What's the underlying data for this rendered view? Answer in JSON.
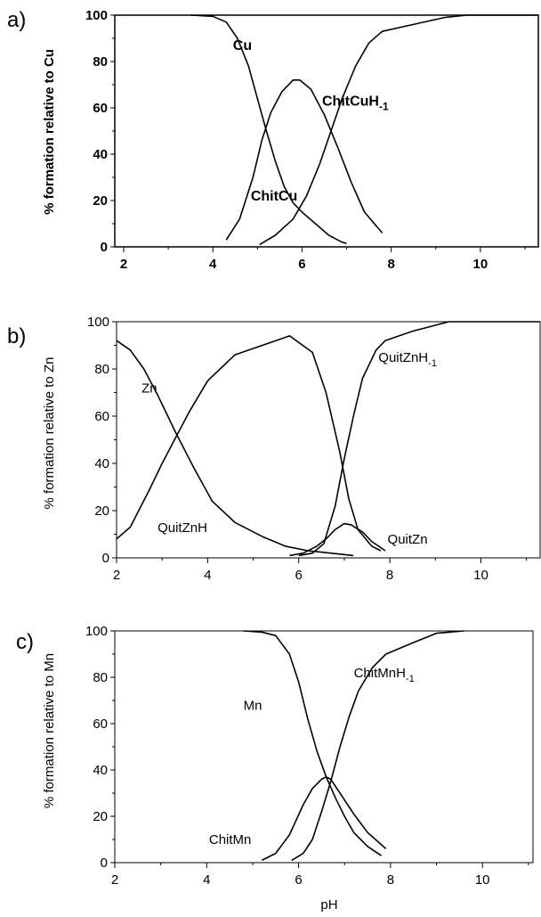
{
  "chart_data": [
    {
      "type": "line",
      "panel_label": "a)",
      "ylabel": "% formation relative to Cu",
      "xlabel": "",
      "xlim": [
        1.8,
        11.3
      ],
      "ylim": [
        0,
        100
      ],
      "xticks": [
        "2",
        "4",
        "6",
        "8",
        "10"
      ],
      "yticks": [
        "0",
        "20",
        "40",
        "60",
        "80",
        "100"
      ],
      "series": [
        {
          "name": "Cu",
          "label_at": [
            4.45,
            85
          ],
          "points": [
            [
              3.5,
              100
            ],
            [
              4.0,
              99.5
            ],
            [
              4.3,
              97
            ],
            [
              4.55,
              90
            ],
            [
              4.8,
              78
            ],
            [
              5.0,
              64
            ],
            [
              5.2,
              50
            ],
            [
              5.4,
              37
            ],
            [
              5.6,
              26
            ],
            [
              5.8,
              19
            ],
            [
              6.0,
              15
            ],
            [
              6.3,
              10
            ],
            [
              6.6,
              5
            ],
            [
              6.9,
              2
            ],
            [
              7.0,
              1.5
            ]
          ]
        },
        {
          "name": "ChitCu",
          "label_at": [
            4.85,
            20
          ],
          "points": [
            [
              4.3,
              3
            ],
            [
              4.6,
              12
            ],
            [
              4.9,
              30
            ],
            [
              5.1,
              46
            ],
            [
              5.3,
              58
            ],
            [
              5.55,
              67
            ],
            [
              5.8,
              72
            ],
            [
              5.95,
              72
            ],
            [
              6.2,
              68
            ],
            [
              6.5,
              57
            ],
            [
              6.8,
              43
            ],
            [
              7.1,
              28
            ],
            [
              7.4,
              15
            ],
            [
              7.8,
              6
            ]
          ]
        },
        {
          "name": "ChitCuH-1",
          "label_at": [
            6.45,
            61
          ],
          "points": [
            [
              5.05,
              1
            ],
            [
              5.4,
              5
            ],
            [
              5.8,
              12
            ],
            [
              6.1,
              22
            ],
            [
              6.4,
              36
            ],
            [
              6.65,
              50
            ],
            [
              6.9,
              64
            ],
            [
              7.2,
              78
            ],
            [
              7.5,
              88
            ],
            [
              7.8,
              93
            ],
            [
              8.5,
              96
            ],
            [
              9.2,
              99
            ],
            [
              9.7,
              100
            ],
            [
              11.3,
              100
            ]
          ]
        }
      ]
    },
    {
      "type": "line",
      "panel_label": "b)",
      "ylabel": "% formation relative to Zn",
      "xlabel": "",
      "xlim": [
        2.0,
        11.3
      ],
      "ylim": [
        0,
        100
      ],
      "xticks": [
        "2",
        "4",
        "6",
        "8",
        "10"
      ],
      "yticks": [
        "0",
        "20",
        "40",
        "60",
        "80",
        "100"
      ],
      "series": [
        {
          "name": "Zn",
          "label_at": [
            2.55,
            70
          ],
          "points": [
            [
              2.0,
              92
            ],
            [
              2.3,
              88
            ],
            [
              2.6,
              80
            ],
            [
              2.9,
              69
            ],
            [
              3.3,
              53
            ],
            [
              3.7,
              38
            ],
            [
              4.1,
              24
            ],
            [
              4.6,
              15
            ],
            [
              5.2,
              9
            ],
            [
              5.7,
              5
            ],
            [
              6.2,
              3
            ],
            [
              6.7,
              2
            ],
            [
              7.2,
              1
            ]
          ]
        },
        {
          "name": "QuitZnH",
          "label_at": [
            2.9,
            11
          ],
          "points": [
            [
              2.0,
              8
            ],
            [
              2.3,
              13
            ],
            [
              2.7,
              28
            ],
            [
              3.0,
              40
            ],
            [
              3.3,
              51
            ],
            [
              3.6,
              62
            ],
            [
              4.0,
              75
            ],
            [
              4.6,
              86
            ],
            [
              5.2,
              90
            ],
            [
              5.8,
              94
            ],
            [
              6.3,
              87
            ],
            [
              6.6,
              70
            ],
            [
              6.9,
              45
            ],
            [
              7.1,
              25
            ],
            [
              7.3,
              12
            ],
            [
              7.6,
              5
            ],
            [
              7.8,
              3
            ]
          ]
        },
        {
          "name": "QuitZnH-1",
          "label_at": [
            7.75,
            83
          ],
          "points": [
            [
              6.0,
              1
            ],
            [
              6.3,
              2
            ],
            [
              6.55,
              6
            ],
            [
              6.8,
              22
            ],
            [
              7.0,
              42
            ],
            [
              7.2,
              60
            ],
            [
              7.4,
              76
            ],
            [
              7.7,
              88
            ],
            [
              7.9,
              92
            ],
            [
              8.5,
              96
            ],
            [
              9.3,
              100
            ],
            [
              11.3,
              100
            ]
          ]
        },
        {
          "name": "QuitZn",
          "label_at": [
            7.95,
            6
          ],
          "points": [
            [
              5.8,
              1
            ],
            [
              6.1,
              2
            ],
            [
              6.4,
              5
            ],
            [
              6.6,
              8
            ],
            [
              6.8,
              12
            ],
            [
              7.0,
              14.5
            ],
            [
              7.15,
              14
            ],
            [
              7.4,
              11
            ],
            [
              7.6,
              7
            ],
            [
              7.9,
              3
            ]
          ]
        }
      ]
    },
    {
      "type": "line",
      "panel_label": "c)",
      "ylabel": "% formation relative to Mn",
      "xlabel": "pH",
      "xlim": [
        2.0,
        11.1
      ],
      "ylim": [
        0,
        100
      ],
      "xticks": [
        "2",
        "4",
        "6",
        "8",
        "10"
      ],
      "yticks": [
        "0",
        "20",
        "40",
        "60",
        "80",
        "100"
      ],
      "series": [
        {
          "name": "Mn",
          "label_at": [
            4.8,
            66
          ],
          "points": [
            [
              4.8,
              100
            ],
            [
              5.2,
              99.5
            ],
            [
              5.5,
              98
            ],
            [
              5.8,
              90
            ],
            [
              6.0,
              78
            ],
            [
              6.2,
              62
            ],
            [
              6.4,
              48
            ],
            [
              6.6,
              37
            ],
            [
              6.8,
              28
            ],
            [
              7.0,
              20
            ],
            [
              7.2,
              13
            ],
            [
              7.5,
              7
            ],
            [
              7.8,
              3
            ]
          ]
        },
        {
          "name": "ChitMn",
          "label_at": [
            4.05,
            8
          ],
          "points": [
            [
              5.2,
              1
            ],
            [
              5.5,
              4
            ],
            [
              5.8,
              12
            ],
            [
              6.1,
              25
            ],
            [
              6.3,
              32
            ],
            [
              6.5,
              36
            ],
            [
              6.6,
              37
            ],
            [
              6.7,
              36
            ],
            [
              6.9,
              30
            ],
            [
              7.2,
              21
            ],
            [
              7.5,
              13
            ],
            [
              7.9,
              6
            ]
          ]
        },
        {
          "name": "ChitMnH-1",
          "label_at": [
            7.2,
            80
          ],
          "points": [
            [
              5.85,
              1
            ],
            [
              6.1,
              4
            ],
            [
              6.3,
              10
            ],
            [
              6.5,
              22
            ],
            [
              6.7,
              35
            ],
            [
              6.9,
              50
            ],
            [
              7.1,
              63
            ],
            [
              7.3,
              74
            ],
            [
              7.6,
              84
            ],
            [
              7.9,
              90
            ],
            [
              8.5,
              95
            ],
            [
              9.0,
              99
            ],
            [
              9.6,
              100
            ]
          ]
        }
      ]
    }
  ]
}
